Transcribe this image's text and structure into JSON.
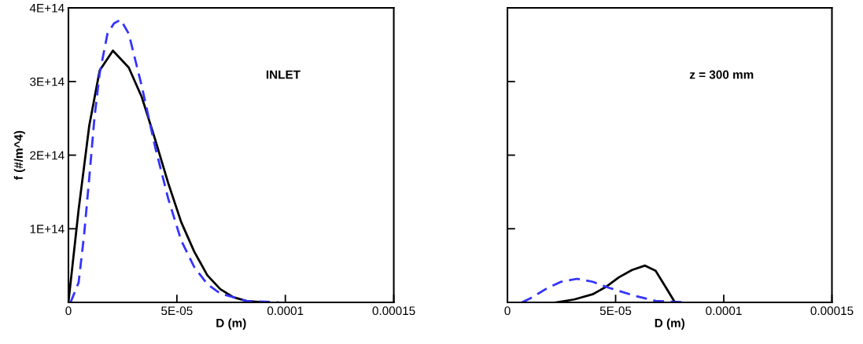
{
  "chart_data": [
    {
      "type": "line",
      "xlabel": "D (m)",
      "ylabel": "f (#/m^4)",
      "annotations": [
        "INLET"
      ],
      "xlim": [
        0,
        0.00015
      ],
      "xticks": [
        0,
        {
          "value": 5e-05,
          "label": "5E-05"
        },
        0.0001,
        0.00015
      ],
      "ylim": [
        0,
        400000000000000.0
      ],
      "yticks": [
        {
          "value": 0,
          "label": null
        },
        {
          "value": 100000000000000.0,
          "label": "1E+14"
        },
        {
          "value": 200000000000000.0,
          "label": "2E+14"
        },
        {
          "value": 300000000000000.0,
          "label": "3E+14"
        },
        {
          "value": 400000000000000.0,
          "label": "4E+14"
        }
      ],
      "grid": false,
      "legend": false,
      "series": [
        {
          "color": "#000000",
          "line_style": "solid",
          "x": [
            0,
            4.7e-06,
            9.6e-06,
            1.44e-05,
            2.05e-05,
            2.78e-05,
            3.38e-05,
            3.99e-05,
            4.6e-05,
            5.2e-05,
            5.8e-05,
            6.4e-05,
            7e-05,
            7.6e-05,
            8.2e-05,
            9e-05
          ],
          "values": [
            0,
            126000000000000.0,
            240000000000000.0,
            315000000000000.0,
            342000000000000.0,
            319000000000000.0,
            279000000000000.0,
            222000000000000.0,
            162000000000000.0,
            109000000000000.0,
            69000000000000.0,
            37000000000000.0,
            18000000000000.0,
            7000000000000.0,
            2000000000000.0,
            0
          ]
        },
        {
          "color": "#3333ff",
          "line_style": "dashed",
          "x": [
            1e-06,
            4.7e-06,
            7.2e-06,
            9.6e-06,
            1.2e-05,
            1.44e-05,
            1.8e-05,
            2.1e-05,
            2.41e-05,
            2.78e-05,
            3.38e-05,
            3.99e-05,
            4.6e-05,
            5.2e-05,
            5.8e-05,
            6.4e-05,
            7e-05,
            8.2e-05,
            9.7e-05
          ],
          "values": [
            0,
            27000000000000.0,
            91000000000000.0,
            169000000000000.0,
            251000000000000.0,
            311000000000000.0,
            365000000000000.0,
            379000000000000.0,
            384000000000000.0,
            365000000000000.0,
            294000000000000.0,
            212000000000000.0,
            141000000000000.0,
            84000000000000.0,
            48000000000000.0,
            25000000000000.0,
            12000000000000.0,
            2000000000000.0,
            0
          ]
        }
      ]
    },
    {
      "type": "line",
      "xlabel": "D (m)",
      "annotations": [
        "z = 300 mm"
      ],
      "tick_labels": "x",
      "xlim": [
        0,
        0.00015
      ],
      "xticks": [
        0,
        {
          "value": 5e-05,
          "label": "5E-05"
        },
        0.0001,
        0.00015
      ],
      "ylim": [
        0,
        400000000000000.0
      ],
      "yticks": [
        0,
        100000000000000.0,
        200000000000000.0,
        300000000000000.0,
        400000000000000.0
      ],
      "grid": false,
      "legend": false,
      "series": [
        {
          "color": "#000000",
          "line_style": "solid",
          "x": [
            2.24e-05,
            3.09e-05,
            3.94e-05,
            4.55e-05,
            5.15e-05,
            5.76e-05,
            6.36e-05,
            6.85e-05,
            7.33e-05,
            7.7e-05
          ],
          "values": [
            0,
            4000000000000.0,
            11000000000000.0,
            21000000000000.0,
            34000000000000.0,
            44000000000000.0,
            50000000000000.0,
            43000000000000.0,
            20000000000000.0,
            2000000000000.0
          ]
        },
        {
          "color": "#3333ff",
          "line_style": "dashed",
          "x": [
            6.7e-06,
            1.03e-05,
            1.88e-05,
            2.48e-05,
            3.21e-05,
            3.94e-05,
            4.67e-05,
            5.88e-05,
            6.85e-05,
            8.3e-05
          ],
          "values": [
            0,
            5000000000000.0,
            20000000000000.0,
            28000000000000.0,
            32000000000000.0,
            28000000000000.0,
            20000000000000.0,
            9000000000000.0,
            2000000000000.0,
            0
          ]
        }
      ]
    }
  ]
}
